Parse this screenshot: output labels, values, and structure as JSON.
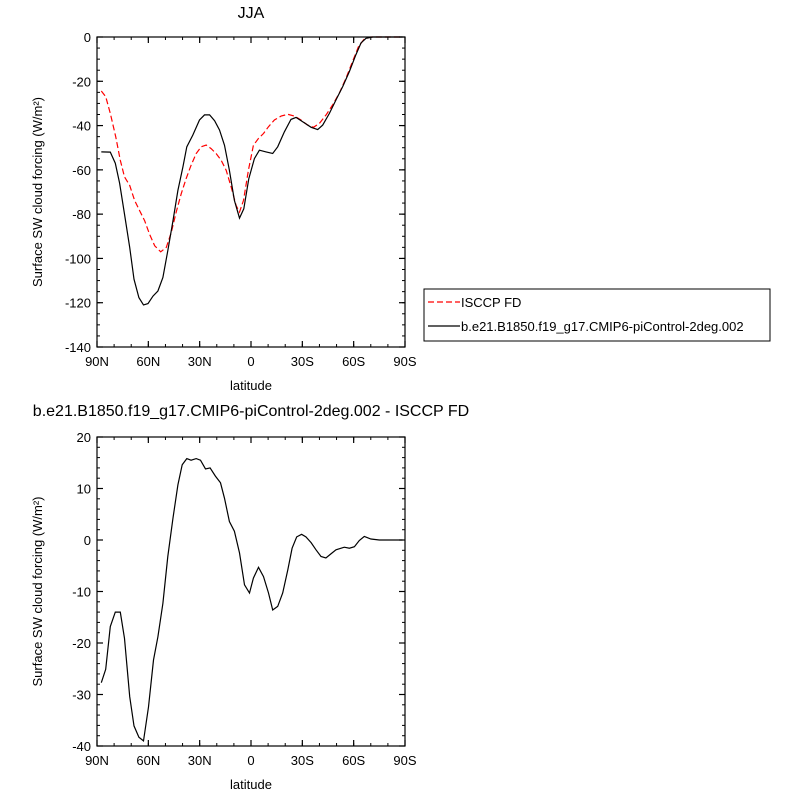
{
  "chart_data": [
    {
      "type": "line",
      "title": "JJA",
      "xlabel": "latitude",
      "ylabel": "Surface SW cloud forcing (W/m²)",
      "xlim": [
        90,
        -90
      ],
      "ylim": [
        -140,
        0
      ],
      "xticks": [
        90,
        60,
        30,
        0,
        -30,
        -60,
        -90
      ],
      "xtick_labels": [
        "90N",
        "60N",
        "30N",
        "0",
        "30S",
        "60S",
        "90S"
      ],
      "yticks": [
        0,
        -20,
        -40,
        -60,
        -80,
        -100,
        -120,
        -140
      ],
      "ytick_labels": [
        "0",
        "-20",
        "-40",
        "-60",
        "-80",
        "-100",
        "-120",
        "-140"
      ],
      "yminor": 5,
      "xminor": 10,
      "grid": false,
      "legend": "right",
      "series": [
        {
          "name": "ISCCP FD",
          "color": "#ff0000",
          "dash": "dashed",
          "x": [
            87.5,
            84.9,
            82.2,
            79.1,
            76.4,
            73.9,
            70.9,
            68,
            65.1,
            62.2,
            59.3,
            56.3,
            52.8,
            49.5,
            46.6,
            43.7,
            40.8,
            37.9,
            35,
            32,
            29.1,
            26.2,
            23.3,
            20.4,
            17.4,
            14.5,
            11.6,
            8.7,
            6.7,
            4.4,
            1.5,
            -1.4,
            -4.4,
            -7.3,
            -10.2,
            -13.7,
            -17.6,
            -21.5,
            -25.4,
            -29.2,
            -33.1,
            -36.5,
            -40,
            -43.9,
            -47.7,
            -51.6,
            -55.5,
            -59.4,
            -62.9,
            -66.2,
            -70.1,
            -88.6
          ],
          "y": [
            -24.4,
            -26.9,
            -34.5,
            -45,
            -55.7,
            -63.2,
            -67,
            -73.8,
            -78.4,
            -82.9,
            -89,
            -94.3,
            -97,
            -95,
            -88.2,
            -79.1,
            -70.8,
            -64,
            -57.9,
            -52.6,
            -49.6,
            -48.8,
            -50.4,
            -52.6,
            -55.7,
            -60.2,
            -67.8,
            -76.1,
            -79.1,
            -73.8,
            -60.2,
            -48.9,
            -45.8,
            -43.6,
            -40.5,
            -37.5,
            -35.7,
            -34.9,
            -35.7,
            -37.5,
            -39.8,
            -40.8,
            -39,
            -35.2,
            -30.7,
            -25.4,
            -18.6,
            -11,
            -4.2,
            -0.9,
            0,
            0
          ]
        },
        {
          "name": "b.e21.B1850.f19_g17.CMIP6-piControl-2deg.002",
          "color": "#000000",
          "dash": "solid",
          "x": [
            87.5,
            82.2,
            79.3,
            76.8,
            73.9,
            70.9,
            68.4,
            65.5,
            62.8,
            60.2,
            57.3,
            54.4,
            51.5,
            48.6,
            45.6,
            42.7,
            39.8,
            37.5,
            34,
            30.1,
            27.2,
            24.2,
            21.3,
            18.4,
            15.5,
            12.6,
            9.7,
            6.7,
            4.2,
            1.3,
            -2,
            -4.9,
            -8.8,
            -12.7,
            -15.6,
            -19.5,
            -23.4,
            -26.3,
            -30.2,
            -35.1,
            -39,
            -41.9,
            -45.8,
            -49.7,
            -53.6,
            -57.5,
            -61.3,
            -64.3,
            -67.2,
            -71.1,
            -88.6
          ],
          "y": [
            -51.9,
            -52,
            -57,
            -66,
            -80,
            -95,
            -109.4,
            -117.7,
            -121,
            -120.4,
            -117,
            -114.7,
            -108.6,
            -96.5,
            -82.9,
            -69.3,
            -58.7,
            -49.6,
            -44.3,
            -37.5,
            -35.2,
            -35.2,
            -37.8,
            -42,
            -48.9,
            -60.2,
            -73.8,
            -81.8,
            -77.6,
            -64,
            -54.9,
            -51.1,
            -51.9,
            -52.6,
            -49.6,
            -42.8,
            -37.2,
            -36.3,
            -38.3,
            -40.8,
            -41.8,
            -39.8,
            -34.5,
            -28.4,
            -22.4,
            -15.6,
            -8,
            -2.7,
            -0.6,
            0,
            0
          ]
        }
      ]
    },
    {
      "type": "line",
      "title": "b.e21.B1850.f19_g17.CMIP6-piControl-2deg.002 - ISCCP FD",
      "xlabel": "latitude",
      "ylabel": "Surface SW cloud forcing (W/m²)",
      "xlim": [
        90,
        -90
      ],
      "ylim": [
        -40,
        20
      ],
      "xticks": [
        90,
        60,
        30,
        0,
        -30,
        -60,
        -90
      ],
      "xtick_labels": [
        "90N",
        "60N",
        "30N",
        "0",
        "30S",
        "60S",
        "90S"
      ],
      "yticks": [
        20,
        10,
        0,
        -10,
        -20,
        -30,
        -40
      ],
      "ytick_labels": [
        "20",
        "10",
        "0",
        "-10",
        "-20",
        "-30",
        "-40"
      ],
      "yminor": 2,
      "xminor": 10,
      "grid": false,
      "series": [
        {
          "color": "#000000",
          "dash": "solid",
          "x": [
            87.5,
            84.9,
            82.2,
            79.3,
            76.4,
            73.9,
            70.9,
            68.4,
            65.5,
            62.8,
            59.9,
            57,
            54.4,
            51.5,
            48.6,
            45.6,
            42.7,
            40.2,
            37.5,
            35,
            32,
            29.5,
            26.6,
            23.9,
            20.8,
            17.8,
            15.5,
            12.6,
            9.7,
            6.7,
            3.8,
            0.9,
            -1.4,
            -4.4,
            -7.3,
            -10.2,
            -12.7,
            -15.6,
            -18.5,
            -21.5,
            -24,
            -26.7,
            -29.6,
            -32.1,
            -35.1,
            -38,
            -40.9,
            -43.8,
            -46.7,
            -49.7,
            -54.5,
            -57.5,
            -60.4,
            -63.3,
            -66.2,
            -70.1,
            -75,
            -88.6
          ],
          "y": [
            -27.7,
            -25.1,
            -16.8,
            -14,
            -14,
            -19.1,
            -30.4,
            -36.1,
            -38.3,
            -39,
            -32.4,
            -23.3,
            -18.8,
            -12.3,
            -3.2,
            4.3,
            10.7,
            14.6,
            15.8,
            15.5,
            15.8,
            15.5,
            13.8,
            14,
            12.4,
            11.1,
            8.1,
            3.6,
            1.7,
            -2.5,
            -8.7,
            -10.3,
            -7.4,
            -5.3,
            -7.1,
            -10.3,
            -13.6,
            -12.9,
            -10.3,
            -5.8,
            -1.6,
            0.6,
            1.1,
            0.6,
            -0.5,
            -1.9,
            -3.2,
            -3.5,
            -2.7,
            -1.9,
            -1.4,
            -1.6,
            -1.3,
            -0.1,
            0.7,
            0.2,
            0,
            0
          ]
        }
      ]
    }
  ]
}
